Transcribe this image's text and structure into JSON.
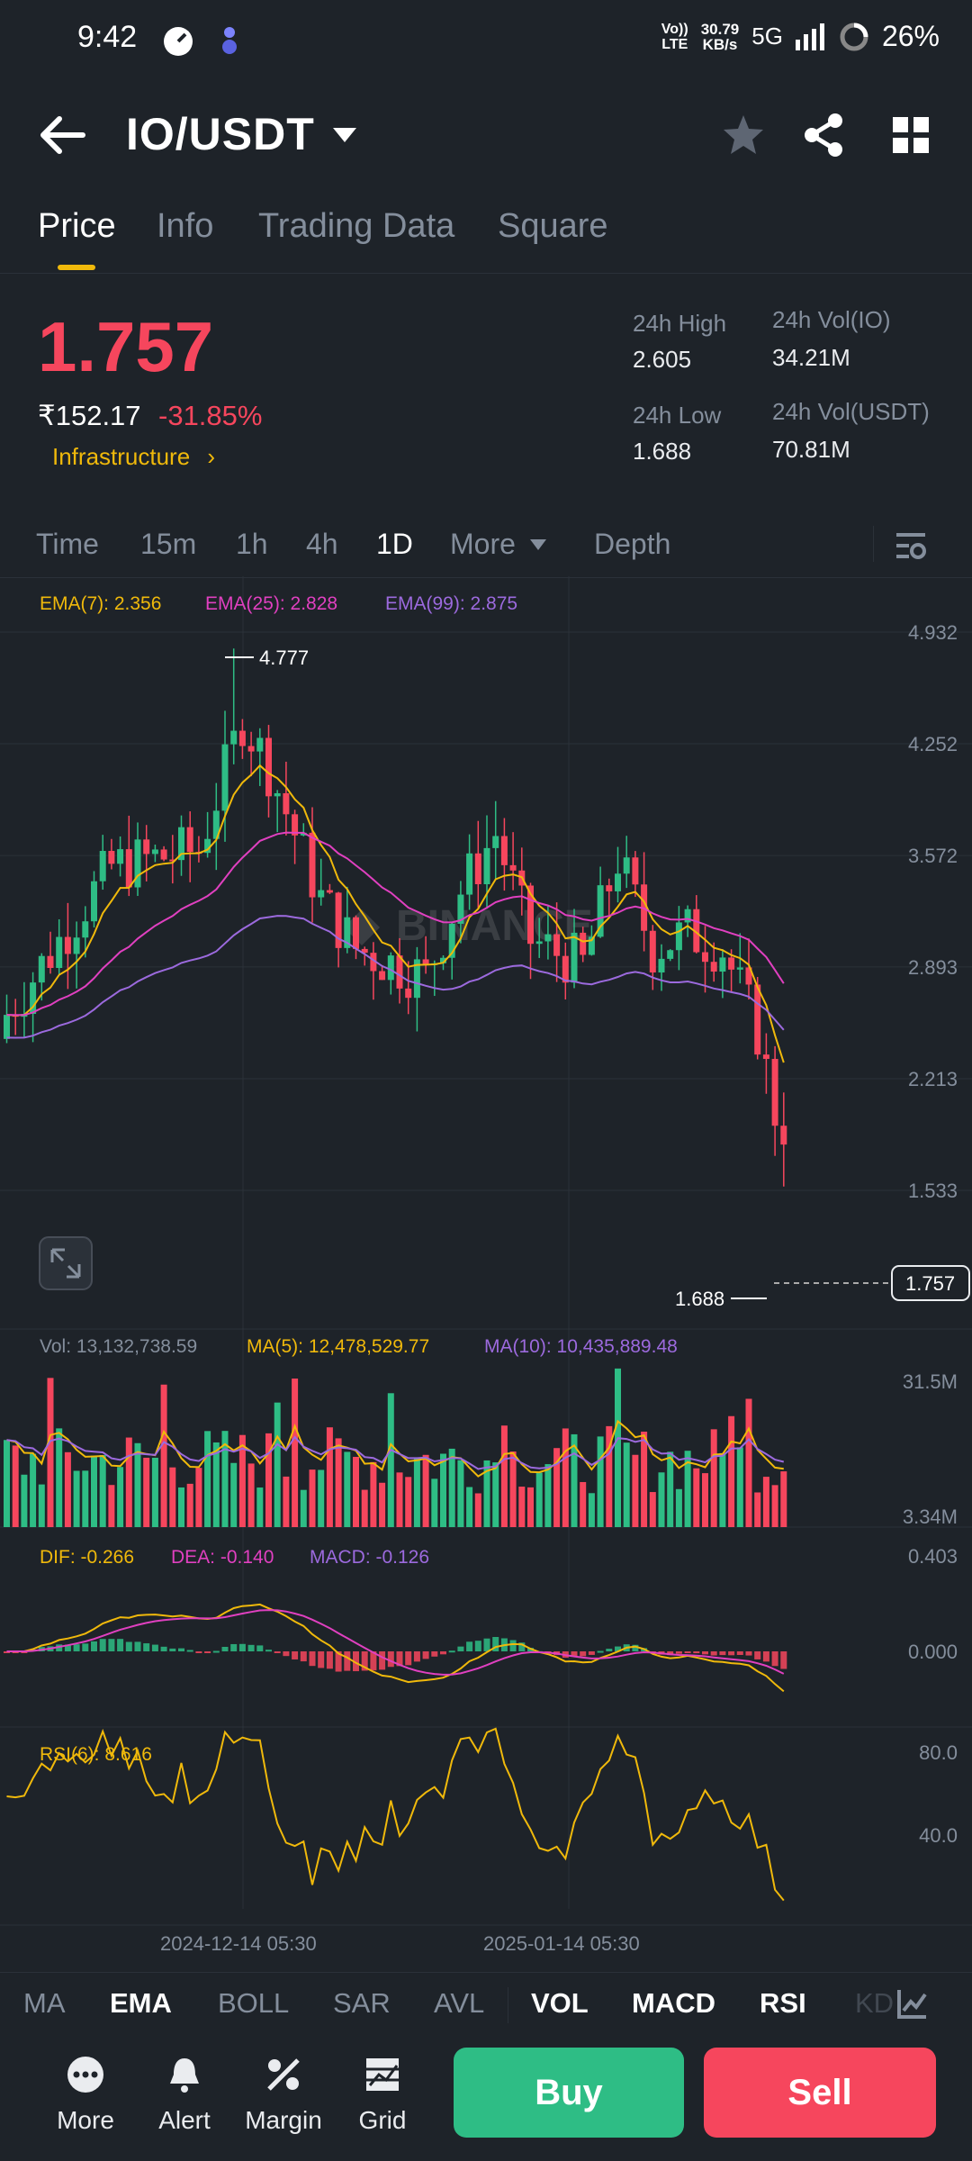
{
  "status_bar": {
    "time": "9:42",
    "net_speed_top": "30.79",
    "net_speed_bottom": "KB/s",
    "volte_top": "Vo))",
    "volte_bottom": "LTE",
    "network": "5G",
    "battery": "26%"
  },
  "header": {
    "pair": "IO/USDT"
  },
  "tabs": [
    "Price",
    "Info",
    "Trading Data",
    "Square"
  ],
  "ticker": {
    "last_price": "1.757",
    "fiat_price": "₹152.17",
    "change_pct": "-31.85%",
    "tag": "Infrastructure",
    "high_label": "24h High",
    "high_value": "2.605",
    "low_label": "24h Low",
    "low_value": "1.688",
    "vol_base_label": "24h Vol(IO)",
    "vol_base_value": "34.21M",
    "vol_quote_label": "24h Vol(USDT)",
    "vol_quote_value": "70.81M"
  },
  "intervals": [
    "Time",
    "15m",
    "1h",
    "4h",
    "1D",
    "More",
    "Depth"
  ],
  "indicators": {
    "ema7": "EMA(7): 2.356",
    "ema25": "EMA(25): 2.828",
    "ema99": "EMA(99): 2.875",
    "vol": "Vol: 13,132,738.59",
    "ma5": "MA(5): 12,478,529.77",
    "ma10": "MA(10): 10,435,889.48",
    "dif": "DIF: -0.266",
    "dea": "DEA: -0.140",
    "macd": "MACD: -0.126",
    "rsi": "RSI(6): 8.616"
  },
  "chart_data": {
    "type": "candlestick",
    "price_axis_ticks": [
      "4.932",
      "4.252",
      "3.572",
      "2.893",
      "2.213",
      "1.533"
    ],
    "price_axis_values": [
      4.932,
      4.252,
      3.572,
      2.893,
      2.213,
      1.533
    ],
    "max_marker": "4.777",
    "min_marker": "1.688",
    "last_price_tag": "1.757",
    "volume_axis_ticks": [
      "31.5M",
      "3.34M"
    ],
    "macd_axis_ticks": [
      "0.403",
      "0.000"
    ],
    "rsi_axis_ticks": [
      "80.0",
      "40.0"
    ],
    "date_ticks": [
      "2024-12-14 05:30",
      "2025-01-14 05:30"
    ],
    "watermark": "BINANCE",
    "colors": {
      "up": "#2ebd85",
      "down": "#f6465d",
      "ema7": "#f0b90b",
      "ema25": "#e040c0",
      "ema99": "#9c6ade"
    }
  },
  "indicator_tabs": [
    "MA",
    "EMA",
    "BOLL",
    "SAR",
    "AVL",
    "VOL",
    "MACD",
    "RSI",
    "KD"
  ],
  "indicator_tabs_active": [
    "EMA",
    "VOL",
    "MACD",
    "RSI"
  ],
  "bottom_bar": {
    "items": [
      "More",
      "Alert",
      "Margin",
      "Grid"
    ],
    "buy": "Buy",
    "sell": "Sell"
  }
}
